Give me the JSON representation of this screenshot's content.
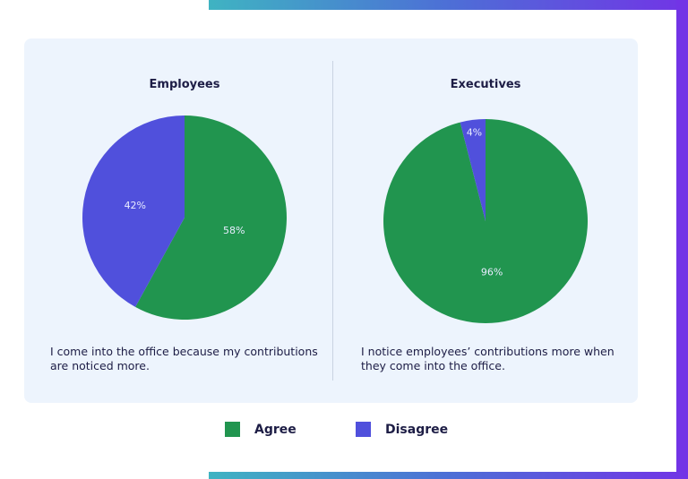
{
  "chart_data": [
    {
      "type": "pie",
      "title": "Employees",
      "caption": "I come into the office because my contributions are noticed more.",
      "slices": [
        {
          "name": "Agree",
          "value": 58,
          "label": "58%"
        },
        {
          "name": "Disagree",
          "value": 42,
          "label": "42%"
        }
      ]
    },
    {
      "type": "pie",
      "title": "Executives",
      "caption": "I notice employees’ contributions more when they come into the office.",
      "slices": [
        {
          "name": "Agree",
          "value": 96,
          "label": "96%"
        },
        {
          "name": "Disagree",
          "value": 4,
          "label": "4%"
        }
      ]
    }
  ],
  "legend": {
    "placement": "bottom",
    "items": [
      {
        "label": "Agree",
        "color": "#21954f"
      },
      {
        "label": "Disagree",
        "color": "#5050dc"
      }
    ]
  },
  "colors": {
    "Agree": "#21954f",
    "Disagree": "#5050dc"
  }
}
